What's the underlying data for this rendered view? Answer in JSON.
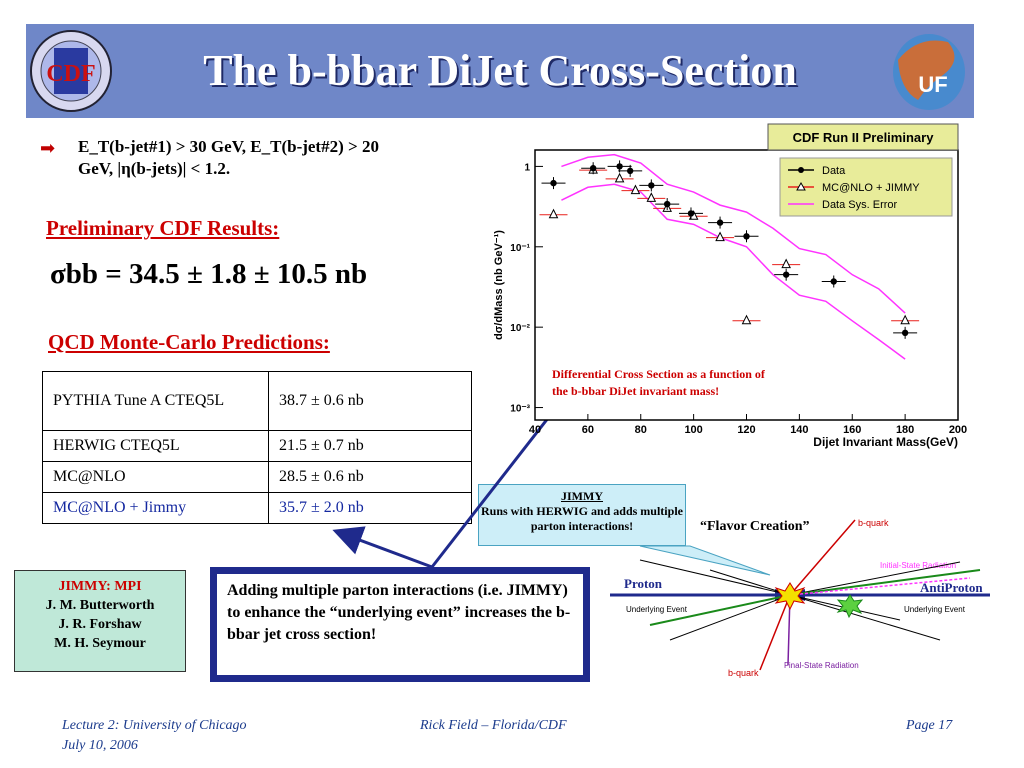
{
  "header": {
    "title": "The b-bbar DiJet Cross-Section",
    "cdf_logo_text": "CDF",
    "uf_logo_text": "UF"
  },
  "bullet": {
    "line1": "E_T(b-jet#1) > 30 GeV, E_T(b-jet#2) > 20",
    "line2": "GeV, |η(b-jets)| < 1.2."
  },
  "results": {
    "heading": "Preliminary CDF Results:",
    "sigma_label": "σbb = 34.5 ± 1.8 ± 10.5 nb"
  },
  "predictions": {
    "heading": "QCD Monte-Carlo Predictions:",
    "rows": [
      {
        "name": "PYTHIA Tune A CTEQ5L",
        "value": "38.7 ± 0.6 nb"
      },
      {
        "name": "HERWIG CTEQ5L",
        "value": "21.5 ± 0.7 nb"
      },
      {
        "name": "MC@NLO",
        "value": "28.5 ± 0.6 nb"
      },
      {
        "name": "MC@NLO + Jimmy",
        "value": "35.7 ± 2.0 nb"
      }
    ]
  },
  "jimmy_credit": {
    "title": "JIMMY: MPI",
    "authors": [
      "J. M. Butterworth",
      "J. R. Forshaw",
      "M. H. Seymour"
    ]
  },
  "adding_text": "Adding multiple parton interactions (i.e. JIMMY) to enhance the “underlying event” increases the b-bbar jet cross section!",
  "jimmy_box": {
    "title": "JIMMY",
    "text": "Runs with HERWIG and adds multiple parton interactions!"
  },
  "diagram": {
    "flavor_creation": "“Flavor Creation”",
    "b_quark": "b-quark",
    "bbar_quark": "b-quark",
    "initial_state": "Initial-State Radiation",
    "final_state": "Final-State Radiation",
    "proton": "Proton",
    "antiproton": "AntiProton",
    "ue_left": "Underlying Event",
    "ue_right": "Underlying Event"
  },
  "chart_data": {
    "type": "scatter",
    "title": "CDF Run II Preliminary",
    "xlabel": "Dijet Invariant Mass(GeV)",
    "ylabel": "dσ/dMass (nb GeV⁻¹)",
    "xlim": [
      40,
      200
    ],
    "ylim": [
      0.0007,
      1.6
    ],
    "yscale": "log",
    "x_ticks": [
      40,
      60,
      80,
      100,
      120,
      140,
      160,
      180,
      200
    ],
    "y_ticks": [
      {
        "value": 1,
        "label": "1"
      },
      {
        "value": 0.1,
        "label": "10⁻¹"
      },
      {
        "value": 0.01,
        "label": "10⁻²"
      },
      {
        "value": 0.001,
        "label": "10⁻³"
      }
    ],
    "legend_position": "top-right",
    "annotation": "Differential Cross Section as a function of the b-bbar DiJet invariant mass!",
    "series": [
      {
        "name": "Data",
        "color": "#000000",
        "marker": "circle",
        "x": [
          47,
          62,
          72,
          76,
          84,
          90,
          99,
          110,
          120,
          135,
          153,
          180
        ],
        "y": [
          0.62,
          0.95,
          1.0,
          0.88,
          0.58,
          0.34,
          0.26,
          0.2,
          0.135,
          0.045,
          0.037,
          0.0085
        ]
      },
      {
        "name": "MC@NLO + JIMMY",
        "color": "#e8201c",
        "marker": "triangle",
        "x": [
          47,
          62,
          72,
          78,
          84,
          90,
          100,
          110,
          120,
          135,
          180
        ],
        "y": [
          0.25,
          0.9,
          0.7,
          0.5,
          0.4,
          0.3,
          0.24,
          0.13,
          0.012,
          0.06,
          0.012
        ]
      },
      {
        "name": "Data Sys. Error",
        "color": "#ff33ff",
        "marker": "none",
        "x": [
          50,
          60,
          70,
          80,
          90,
          100,
          110,
          120,
          130,
          140,
          150,
          160,
          170,
          180
        ],
        "y_upper": [
          1.0,
          1.3,
          1.4,
          1.1,
          0.6,
          0.48,
          0.33,
          0.27,
          0.17,
          0.095,
          0.08,
          0.045,
          0.03,
          0.015
        ],
        "y_lower": [
          0.38,
          0.55,
          0.6,
          0.48,
          0.22,
          0.19,
          0.13,
          0.1,
          0.045,
          0.025,
          0.021,
          0.012,
          0.007,
          0.004
        ]
      }
    ]
  },
  "footer": {
    "left_line1": "Lecture 2: University of Chicago",
    "left_line2": "July 10, 2006",
    "center": "Rick Field – Florida/CDF",
    "right": "Page 17"
  }
}
